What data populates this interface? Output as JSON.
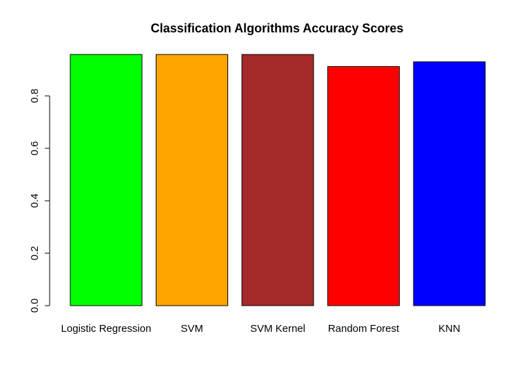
{
  "chart_data": {
    "type": "bar",
    "title": "Classification Algorithms Accuracy Scores",
    "xlabel": "",
    "ylabel": "",
    "categories": [
      "Logistic Regression",
      "SVM",
      "SVM Kernel",
      "Random Forest",
      "KNN"
    ],
    "values": [
      0.958,
      0.958,
      0.958,
      0.912,
      0.93
    ],
    "colors": [
      "#00ff00",
      "#ffa500",
      "#a52a2a",
      "#ff0000",
      "#0000ff"
    ],
    "ylim": [
      0,
      1.0
    ],
    "yticks": [
      0.0,
      0.2,
      0.4,
      0.6,
      0.8
    ],
    "ytick_labels": [
      "0.0",
      "0.2",
      "0.4",
      "0.6",
      "0.8"
    ],
    "grid": false,
    "legend": "none"
  }
}
